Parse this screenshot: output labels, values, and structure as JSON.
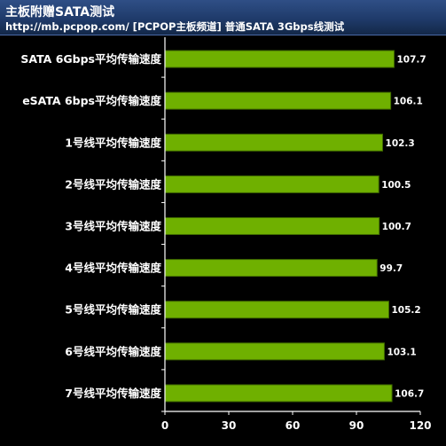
{
  "header": {
    "title": "主板附赠SATA测试",
    "subtitle": "http://mb.pcpop.com/ [PCPOP主板频道] 普通SATA 3Gbps线测试"
  },
  "colors": {
    "bar": "#6fb000",
    "bar_edge": "#3f6a00",
    "axis": "#ffffff",
    "text": "#ffffff",
    "header_bg": "#1f3a6a"
  },
  "chart_data": {
    "type": "bar",
    "orientation": "horizontal",
    "categories": [
      "SATA 6Gbps平均传输速度",
      "eSATA  6bps平均传输速度",
      "1号线平均传输速度",
      "2号线平均传输速度",
      "3号线平均传输速度",
      "4号线平均传输速度",
      "5号线平均传输速度",
      "6号线平均传输速度",
      "7号线平均传输速度"
    ],
    "values": [
      107.7,
      106.1,
      102.3,
      100.5,
      100.7,
      99.7,
      105.2,
      103.1,
      106.7
    ],
    "data_labels": [
      "107.7",
      "106.1",
      "102.3",
      "100.5",
      "100.7",
      "99.7",
      "105.2",
      "103.1",
      "106.7"
    ],
    "xlim": [
      0,
      120
    ],
    "ticks": [
      0,
      30,
      60,
      90,
      120
    ],
    "tick_labels": [
      "0",
      "30",
      "60",
      "90",
      "120"
    ],
    "grid": false,
    "legend": "none"
  }
}
